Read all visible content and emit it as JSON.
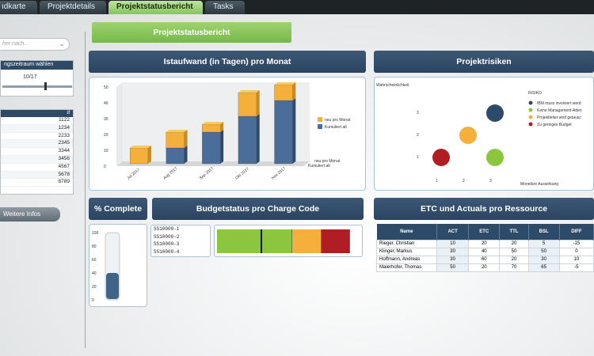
{
  "tabs": [
    {
      "label": "ıdkarte",
      "active": false
    },
    {
      "label": "Projektdetails",
      "active": false
    },
    {
      "label": "Projektstatusbericht",
      "active": true
    },
    {
      "label": "Tasks",
      "active": false
    }
  ],
  "sidebar": {
    "search_placeholder": "her nach...",
    "period_title": "ngszeitraum wählen",
    "period_value": "10/17",
    "id_list": [
      "1122",
      "1234",
      "2233",
      "2345",
      "3344",
      "3456",
      "4567",
      "5678",
      "6789"
    ],
    "more_button": "Weitere Infos"
  },
  "status_button": "Projektstatusbericht",
  "effort": {
    "title": "Istaufwand (in Tagen) pro Monat",
    "legend_top": "neu pro Monat",
    "legend_bottom": "Kumuliert alt",
    "axis_note_1": "neu pro Monat",
    "axis_note_2": "Kumuliert alt"
  },
  "risks": {
    "title": "Projektrisiken",
    "ylabel": "Wahrscheinlichkeit",
    "xlabel": "Monetäre Auswirkung",
    "legend_title": "RISIKO",
    "legend": [
      {
        "label": "IBM muss involviert werd",
        "color": "#2e4a6b"
      },
      {
        "label": "Keine Management-Atten",
        "color": "#8cc63f"
      },
      {
        "label": "Projektleiter wird getausc",
        "color": "#f4b03a"
      },
      {
        "label": "Zu geringes Budget",
        "color": "#b01e23"
      }
    ]
  },
  "complete": {
    "title": "% Complete",
    "ticks": [
      "100",
      "80",
      "60",
      "40",
      "20",
      "0"
    ],
    "percent": 40
  },
  "budget": {
    "title": "Budgetstatus pro Charge Code",
    "codes": [
      "SS10000-1",
      "SS10000-2",
      "SS10000-3",
      "SS10000-4"
    ],
    "segments": [
      {
        "color": "#8cc63f",
        "share": 0.52
      },
      {
        "color": "#f4b03a",
        "share": 0.2
      },
      {
        "color": "#b01e23",
        "share": 0.2
      }
    ],
    "marker": 0.3
  },
  "resources": {
    "title": "ETC und Actuals pro Ressource",
    "columns": [
      "Name",
      "ACT",
      "ETC",
      "TTL",
      "BSL",
      "DIFF"
    ],
    "rows": [
      [
        "Rieger, Christian",
        "10",
        "20",
        "20",
        "5",
        "-15"
      ],
      [
        "Klinger, Markus",
        "30",
        "40",
        "50",
        "50",
        "0"
      ],
      [
        "Hoffmann, Andreas",
        "30",
        "60",
        "20",
        "30",
        "10"
      ],
      [
        "Maierhofer, Thomas",
        "50",
        "20",
        "70",
        "65",
        "-5"
      ]
    ]
  },
  "chart_data": [
    {
      "type": "bar",
      "title": "Istaufwand (in Tagen) pro Monat",
      "categories": [
        "Jul 2017",
        "Aug 2017",
        "Sep 2017",
        "Okt 2017",
        "Nov 2017"
      ],
      "series": [
        {
          "name": "Kumuliert alt",
          "values": [
            0,
            10,
            20,
            30,
            40
          ],
          "color": "#4a6d9a"
        },
        {
          "name": "neu pro Monat",
          "values": [
            10,
            10,
            5,
            15,
            10
          ],
          "color": "#f4b03a"
        }
      ],
      "stacked": true,
      "yticks": [
        "0",
        "10",
        "20",
        "30",
        "40",
        "50"
      ],
      "ylim": [
        0,
        50
      ]
    },
    {
      "type": "scatter",
      "title": "Projektrisiken",
      "xlabel": "Monetäre Auswirkung",
      "ylabel": "Wahrscheinlichkeit",
      "xticks": [
        "1",
        "2",
        "3"
      ],
      "yticks": [
        "1",
        "2",
        "3"
      ],
      "points": [
        {
          "x": 3,
          "y": 3,
          "color": "#2e4a6b"
        },
        {
          "x": 2,
          "y": 2,
          "color": "#f4b03a"
        },
        {
          "x": 1,
          "y": 1,
          "color": "#b01e23"
        },
        {
          "x": 3,
          "y": 1,
          "color": "#8cc63f"
        }
      ]
    }
  ]
}
